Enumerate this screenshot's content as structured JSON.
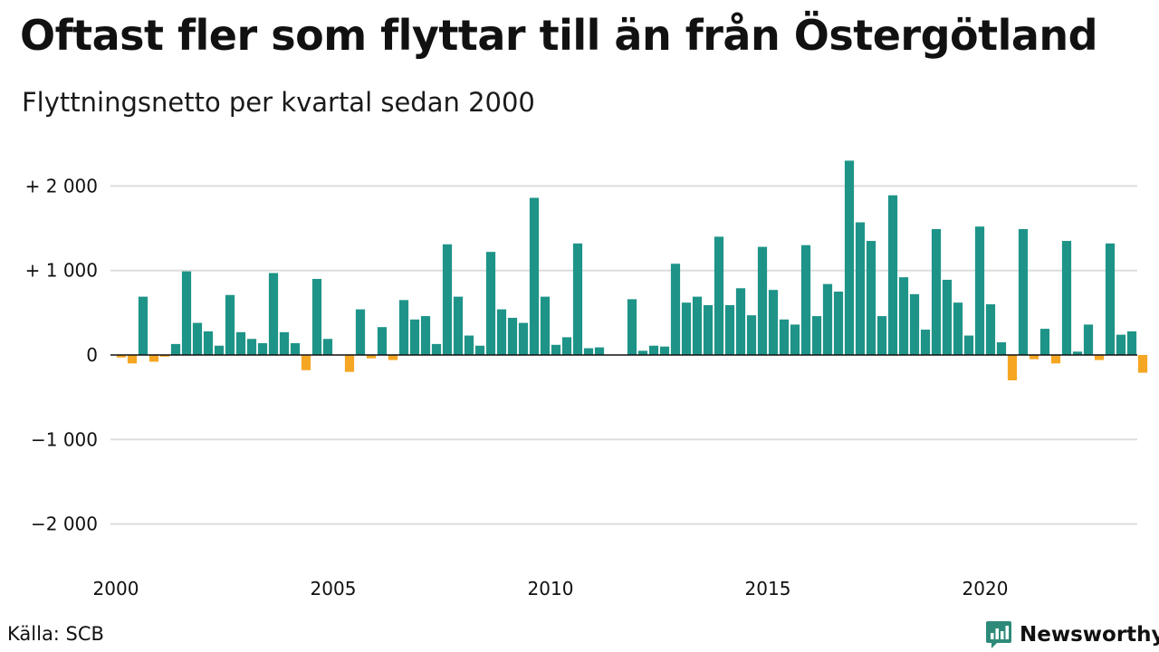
{
  "title": "Oftast fler som flyttar till än från Östergötland",
  "subtitle": "Flyttningsnetto per kvartal sedan 2000",
  "source": "Källa: SCB",
  "brand": {
    "name": "Newsworthy",
    "icon": "newsworthy-logo-icon"
  },
  "colors": {
    "positive": "#1e9488",
    "negative": "#f5a623",
    "brand": "#2e8b7a",
    "grid": "#dddddd",
    "zero_line": "#111111"
  },
  "chart_data": {
    "type": "bar",
    "ylim": [
      -2300,
      2400
    ],
    "yticks": [
      {
        "value": 2000,
        "label": "+ 2 000"
      },
      {
        "value": 1000,
        "label": "+ 1 000"
      },
      {
        "value": 0,
        "label": "0"
      },
      {
        "value": -1000,
        "label": "−1 000"
      },
      {
        "value": -2000,
        "label": "−2 000"
      }
    ],
    "xticks": [
      {
        "value": 2000,
        "label": "2000"
      },
      {
        "value": 2005,
        "label": "2005"
      },
      {
        "value": 2010,
        "label": "2010"
      },
      {
        "value": 2015,
        "label": "2015"
      },
      {
        "value": 2020,
        "label": "2020"
      }
    ],
    "grid": true,
    "start_year": 2000,
    "quarters_per_year": 4,
    "values": [
      -30,
      -100,
      690,
      -80,
      -20,
      130,
      990,
      380,
      280,
      110,
      710,
      270,
      190,
      140,
      970,
      270,
      140,
      -180,
      900,
      190,
      0,
      -200,
      540,
      -40,
      330,
      -60,
      650,
      420,
      460,
      130,
      1310,
      690,
      230,
      110,
      1220,
      540,
      440,
      380,
      1860,
      690,
      120,
      210,
      1320,
      80,
      90,
      0,
      0,
      660,
      50,
      110,
      100,
      1080,
      620,
      690,
      590,
      1400,
      590,
      790,
      470,
      1280,
      770,
      420,
      360,
      1300,
      460,
      840,
      750,
      2300,
      1570,
      1350,
      460,
      1890,
      920,
      720,
      300,
      1490,
      890,
      620,
      230,
      1520,
      600,
      150,
      -300,
      1490,
      -50,
      310,
      -100,
      1350,
      40,
      360,
      -60,
      1320,
      240,
      280,
      -210
    ]
  }
}
